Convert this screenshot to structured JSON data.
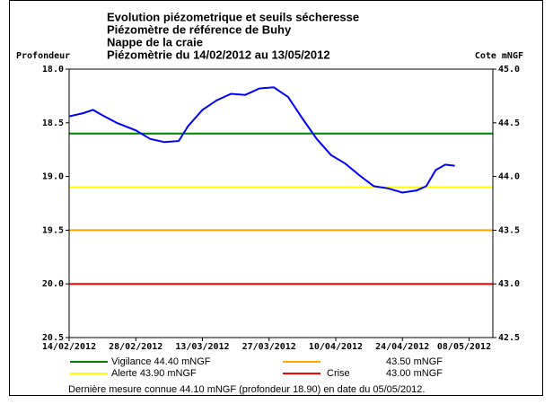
{
  "chart_data": {
    "type": "line",
    "title": [
      "Evolution piézometrique et seuils sécheresse",
      "Piézomètre de référence de Buhy",
      "Nappe de la craie",
      "Piézomètrie du 14/02/2012 au 13/05/2012"
    ],
    "ylabel": "Profondeur",
    "y2label": "Cote mNGF",
    "xlim": [
      "2012-02-14",
      "2012-05-13"
    ],
    "xticks": [
      {
        "value": "2012-02-14",
        "label": "14/02/2012"
      },
      {
        "value": "2012-02-28",
        "label": "28/02/2012"
      },
      {
        "value": "2012-03-13",
        "label": "13/03/2012"
      },
      {
        "value": "2012-03-27",
        "label": "27/03/2012"
      },
      {
        "value": "2012-04-10",
        "label": "10/04/2012"
      },
      {
        "value": "2012-04-24",
        "label": "24/04/2012"
      },
      {
        "value": "2012-05-08",
        "label": "08/05/2012"
      }
    ],
    "ylim": [
      18,
      20.5
    ],
    "y_inverted": true,
    "yticks": [
      {
        "value": 18,
        "label": "18.0"
      },
      {
        "value": 18.5,
        "label": "18.5"
      },
      {
        "value": 19,
        "label": "19.0"
      },
      {
        "value": 19.5,
        "label": "19.5"
      },
      {
        "value": 20,
        "label": "20.0"
      },
      {
        "value": 20.5,
        "label": "20.5"
      }
    ],
    "y2lim": [
      42.5,
      45
    ],
    "y2ticks": [
      42.5,
      {
        "value": 43,
        "label": "43.0"
      },
      43.5,
      {
        "value": 44,
        "label": "44.0"
      },
      44.5,
      {
        "value": 45,
        "label": "45.0"
      }
    ],
    "x": [
      "2012-02-14",
      "2012-02-17",
      "2012-02-19",
      "2012-02-21",
      "2012-02-24",
      "2012-02-28",
      "2012-03-02",
      "2012-03-05",
      "2012-03-08",
      "2012-03-10",
      "2012-03-13",
      "2012-03-16",
      "2012-03-19",
      "2012-03-22",
      "2012-03-25",
      "2012-03-28",
      "2012-03-31",
      "2012-04-03",
      "2012-04-06",
      "2012-04-09",
      "2012-04-12",
      "2012-04-15",
      "2012-04-18",
      "2012-04-21",
      "2012-04-24",
      "2012-04-27",
      "2012-04-29",
      "2012-05-01",
      "2012-05-03",
      "2012-05-05"
    ],
    "series": [
      {
        "color": "#0000ff",
        "values": [
          18.44,
          18.41,
          18.38,
          18.43,
          18.5,
          18.57,
          18.65,
          18.68,
          18.67,
          18.53,
          18.38,
          18.29,
          18.23,
          18.24,
          18.18,
          18.17,
          18.26,
          18.46,
          18.65,
          18.8,
          18.88,
          18.99,
          19.09,
          19.11,
          19.15,
          19.13,
          19.09,
          18.94,
          18.89,
          18.9
        ]
      }
    ],
    "thresholds": [
      {
        "name": "Vigilance",
        "value": 44.4,
        "value_label": "44.40 mNGF",
        "color": "#008000",
        "axis": "y2"
      },
      {
        "value": 43.5,
        "value_label": "43.50 mNGF",
        "color": "#ffa500",
        "axis": "y2"
      },
      {
        "name": "Alerte",
        "value": 43.9,
        "value_label": "43.90 mNGF",
        "color": "#ffff00",
        "axis": "y2"
      },
      {
        "name": "Crise",
        "value": 43,
        "value_label": "43.00 mNGF",
        "color": "#ff0000",
        "axis": "y2"
      }
    ],
    "note": "Dernière mesure connue 44.10 mNGF (profondeur  18.90) en date du 05/05/2012."
  }
}
